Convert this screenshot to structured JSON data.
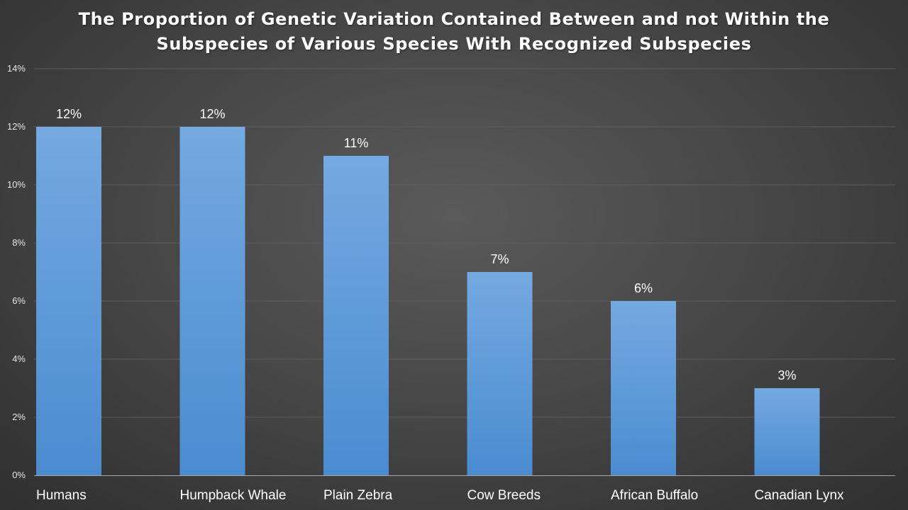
{
  "chart_data": {
    "type": "bar",
    "title": "The Proportion of Genetic Variation Contained Between and not Within the\nSubspecies of Various Species With Recognized Subspecies",
    "xlabel": "",
    "ylabel": "",
    "categories": [
      "Humans",
      "Humpback Whale",
      "Plain Zebra",
      "Cow Breeds",
      "African Buffalo",
      "Canadian Lynx"
    ],
    "values": [
      12,
      12,
      11,
      7,
      6,
      3
    ],
    "data_labels": [
      "12%",
      "12%",
      "11%",
      "7%",
      "6%",
      "3%"
    ],
    "ylim": [
      0,
      14
    ],
    "yticks": [
      0,
      2,
      4,
      6,
      8,
      10,
      12,
      14
    ],
    "ytick_labels": [
      "0%",
      "2%",
      "4%",
      "6%",
      "8%",
      "10%",
      "12%",
      "14%"
    ],
    "grid": true,
    "legend": "none",
    "colors": {
      "bar_top": "#74a9e1",
      "bar_bottom": "#4a8cd0",
      "gridline": "#5e5e5e",
      "axis": "#a6a6a6",
      "text": "#ffffff"
    }
  }
}
